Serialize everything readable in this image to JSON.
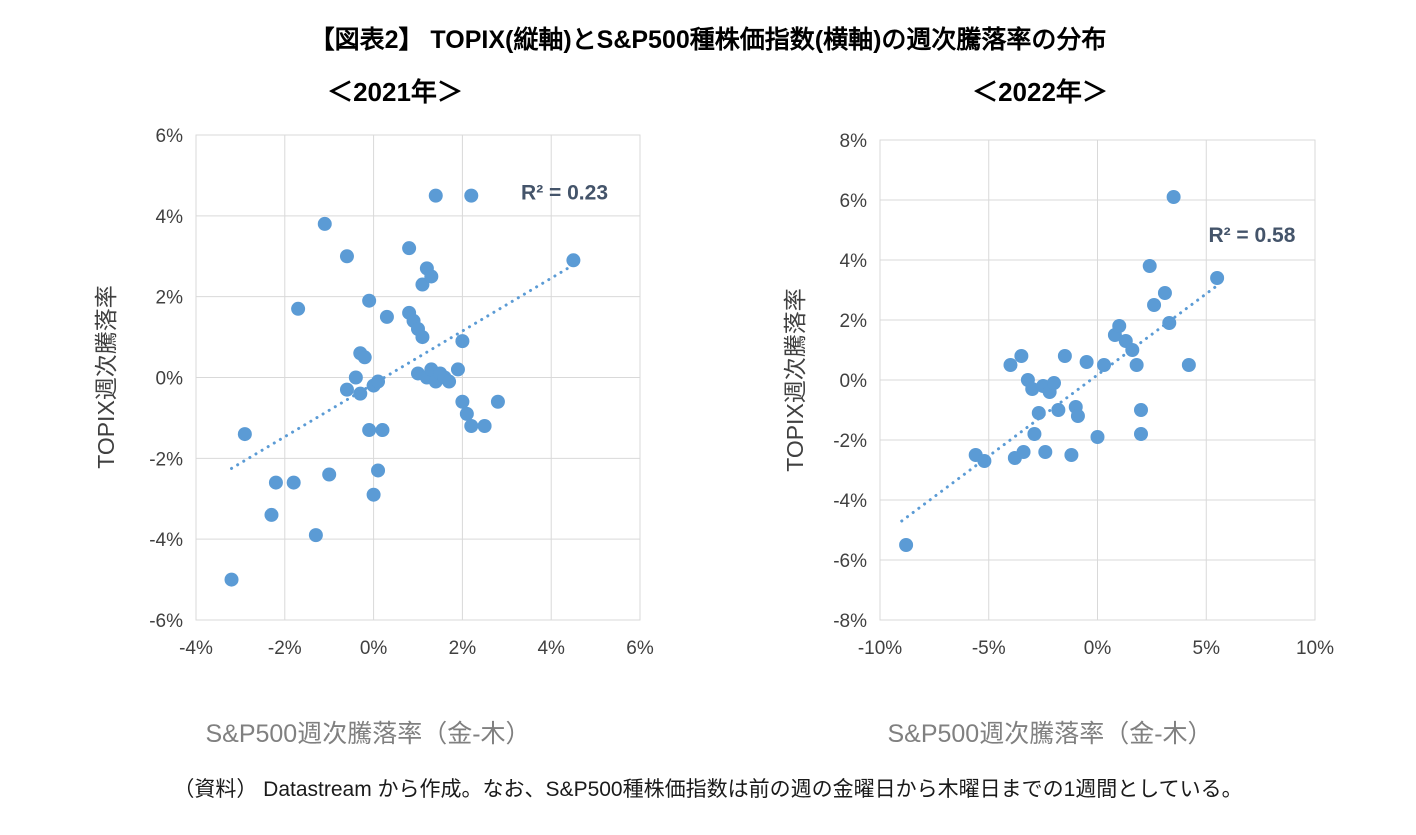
{
  "title": "【図表2】 TOPIX(縦軸)とS&P500種株価指数(横軸)の週次騰落率の分布",
  "footer": "（資料） Datastream から作成。なお、S&P500種株価指数は前の週の金曜日から木曜日までの1週間としている。",
  "colors": {
    "point": "#5B9BD5",
    "trend": "#5B9BD5",
    "grid": "#D9D9D9",
    "tick_text": "#404040",
    "r2_text": "#44546A",
    "axis_title": "#404040",
    "x_axis_title": "#808080"
  },
  "chart_data": [
    {
      "type": "scatter",
      "subtitle": "＜2021年＞",
      "ylabel": "TOPIX週次騰落率",
      "xlabel": "S&P500週次騰落率（金-木）",
      "r2_label": "R² = 0.23",
      "r2_pos": {
        "x": 4.3,
        "y": 4.4
      },
      "xlim": [
        -4,
        6
      ],
      "ylim": [
        -6,
        6
      ],
      "grid": true,
      "xticks": {
        "values": [
          -4,
          -2,
          0,
          2,
          4,
          6
        ],
        "labels": [
          "-4%",
          "-2%",
          "0%",
          "2%",
          "4%",
          "6%"
        ]
      },
      "yticks": {
        "values": [
          6,
          4,
          2,
          0,
          -2,
          -4,
          -6
        ],
        "labels": [
          "6%",
          "4%",
          "2%",
          "0%",
          "-2%",
          "-4%",
          "-6%"
        ]
      },
      "trendline": {
        "x1": -3.2,
        "y1": -2.25,
        "x2": 4.6,
        "y2": 2.85
      },
      "points": [
        [
          -3.2,
          -5.0
        ],
        [
          -2.9,
          -1.4
        ],
        [
          -2.3,
          -3.4
        ],
        [
          -2.2,
          -2.6
        ],
        [
          -1.8,
          -2.6
        ],
        [
          -1.7,
          1.7
        ],
        [
          -1.3,
          -3.9
        ],
        [
          -1.1,
          3.8
        ],
        [
          -1.0,
          -2.4
        ],
        [
          -0.6,
          3.0
        ],
        [
          -0.6,
          -0.3
        ],
        [
          -0.4,
          0.0
        ],
        [
          -0.3,
          0.6
        ],
        [
          -0.3,
          -0.4
        ],
        [
          -0.2,
          0.5
        ],
        [
          -0.1,
          1.9
        ],
        [
          -0.1,
          -1.3
        ],
        [
          0.0,
          -0.2
        ],
        [
          0.0,
          -2.9
        ],
        [
          0.1,
          -0.1
        ],
        [
          0.1,
          -2.3
        ],
        [
          0.2,
          -1.3
        ],
        [
          0.3,
          1.5
        ],
        [
          0.8,
          3.2
        ],
        [
          0.8,
          1.6
        ],
        [
          0.9,
          1.4
        ],
        [
          1.0,
          1.2
        ],
        [
          1.0,
          0.1
        ],
        [
          1.1,
          2.3
        ],
        [
          1.1,
          1.0
        ],
        [
          1.2,
          0.0
        ],
        [
          1.2,
          2.7
        ],
        [
          1.3,
          2.5
        ],
        [
          1.3,
          0.2
        ],
        [
          1.4,
          4.5
        ],
        [
          1.4,
          -0.1
        ],
        [
          1.5,
          0.1
        ],
        [
          1.6,
          0.0
        ],
        [
          1.7,
          -0.1
        ],
        [
          1.9,
          0.2
        ],
        [
          2.0,
          0.9
        ],
        [
          2.0,
          -0.6
        ],
        [
          2.1,
          -0.9
        ],
        [
          2.2,
          4.5
        ],
        [
          2.2,
          -1.2
        ],
        [
          2.5,
          -1.2
        ],
        [
          2.8,
          -0.6
        ],
        [
          4.5,
          2.9
        ]
      ]
    },
    {
      "type": "scatter",
      "subtitle": "＜2022年＞",
      "ylabel": "TOPIX週次騰落率",
      "xlabel": "S&P500週次騰落率（金-木）",
      "r2_label": "R² = 0.58",
      "r2_pos": {
        "x": 7.1,
        "y": 4.6
      },
      "xlim": [
        -10,
        10
      ],
      "ylim": [
        -8,
        8
      ],
      "grid": true,
      "xticks": {
        "values": [
          -10,
          -5,
          0,
          5,
          10
        ],
        "labels": [
          "-10%",
          "-5%",
          "0%",
          "5%",
          "10%"
        ]
      },
      "yticks": {
        "values": [
          8,
          6,
          4,
          2,
          0,
          -2,
          -4,
          -6,
          -8
        ],
        "labels": [
          "8%",
          "6%",
          "4%",
          "2%",
          "0%",
          "-2%",
          "-4%",
          "-6%",
          "-8%"
        ]
      },
      "trendline": {
        "x1": -9.0,
        "y1": -4.7,
        "x2": 5.6,
        "y2": 3.2
      },
      "points": [
        [
          -8.8,
          -5.5
        ],
        [
          -5.6,
          -2.5
        ],
        [
          -5.2,
          -2.7
        ],
        [
          -4.0,
          0.5
        ],
        [
          -3.8,
          -2.6
        ],
        [
          -3.5,
          0.8
        ],
        [
          -3.4,
          -2.4
        ],
        [
          -3.2,
          0.0
        ],
        [
          -3.0,
          -0.3
        ],
        [
          -2.9,
          -1.8
        ],
        [
          -2.7,
          -1.1
        ],
        [
          -2.5,
          -0.2
        ],
        [
          -2.4,
          -2.4
        ],
        [
          -2.2,
          -0.4
        ],
        [
          -2.0,
          -0.1
        ],
        [
          -1.8,
          -1.0
        ],
        [
          -1.5,
          0.8
        ],
        [
          -1.2,
          -2.5
        ],
        [
          -1.0,
          -0.9
        ],
        [
          -0.9,
          -1.2
        ],
        [
          -0.5,
          0.6
        ],
        [
          0.0,
          -1.9
        ],
        [
          0.3,
          0.5
        ],
        [
          0.8,
          1.5
        ],
        [
          1.0,
          1.8
        ],
        [
          1.3,
          1.3
        ],
        [
          1.6,
          1.0
        ],
        [
          1.8,
          0.5
        ],
        [
          2.0,
          -1.0
        ],
        [
          2.0,
          -1.8
        ],
        [
          2.4,
          3.8
        ],
        [
          2.6,
          2.5
        ],
        [
          3.1,
          2.9
        ],
        [
          3.3,
          1.9
        ],
        [
          3.5,
          6.1
        ],
        [
          4.2,
          0.5
        ],
        [
          5.5,
          3.4
        ]
      ]
    }
  ]
}
